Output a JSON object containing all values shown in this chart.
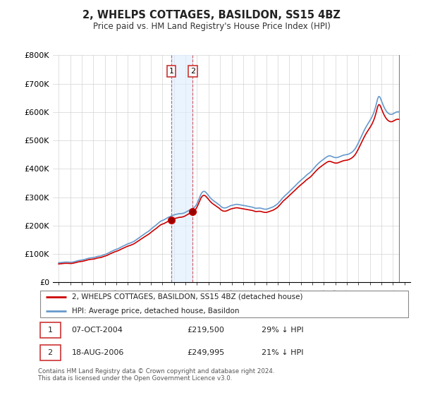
{
  "title": "2, WHELPS COTTAGES, BASILDON, SS15 4BZ",
  "subtitle": "Price paid vs. HM Land Registry's House Price Index (HPI)",
  "property_label": "2, WHELPS COTTAGES, BASILDON, SS15 4BZ (detached house)",
  "hpi_label": "HPI: Average price, detached house, Basildon",
  "footnote": "Contains HM Land Registry data © Crown copyright and database right 2024.\nThis data is licensed under the Open Government Licence v3.0.",
  "transaction1": {
    "label": "1",
    "date": "07-OCT-2004",
    "price": "£219,500",
    "pct": "29% ↓ HPI"
  },
  "transaction2": {
    "label": "2",
    "date": "18-AUG-2006",
    "price": "£249,995",
    "pct": "21% ↓ HPI"
  },
  "property_color": "#cc0000",
  "hpi_color": "#6699cc",
  "shade_color": "#ddeeff",
  "ylim": [
    0,
    800000
  ],
  "yticks": [
    0,
    100000,
    200000,
    300000,
    400000,
    500000,
    600000,
    700000,
    800000
  ],
  "ytick_labels": [
    "£0",
    "£100K",
    "£200K",
    "£300K",
    "£400K",
    "£500K",
    "£600K",
    "£700K",
    "£800K"
  ],
  "t1_x": 2004.77,
  "t1_y": 219500,
  "t2_x": 2006.63,
  "t2_y": 249995,
  "shade_x1": 2004.77,
  "shade_x2": 2006.63,
  "xlim_left": 1994.5,
  "xlim_right": 2025.5,
  "hatch_start": 2024.5,
  "vline_x": 2024.5
}
